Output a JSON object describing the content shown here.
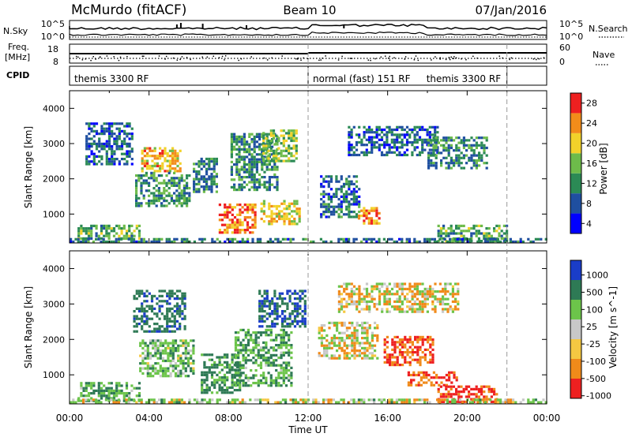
{
  "header": {
    "title": "McMurdo (fitACF)",
    "beam": "Beam 10",
    "date": "07/Jan/2016"
  },
  "strips": {
    "nsky_label": "N.Sky",
    "nsearch_label": "N.Search",
    "freq_label_1": "Freq.",
    "freq_label_2": "[MHz]",
    "nave_label": "Nave",
    "cpid_label": "CPID",
    "left_ticks_top": [
      "10^5",
      "10^0"
    ],
    "right_ticks_top": [
      "10^5",
      "10^0"
    ],
    "left_ticks_freq": [
      "18",
      "8"
    ],
    "right_ticks_nave": [
      "60",
      "0"
    ],
    "cpid_segments": [
      {
        "label": "themis 3300 RF",
        "start_hour": 0,
        "end_hour": 12
      },
      {
        "label": "normal (fast) 151 RF",
        "start_hour": 12,
        "end_hour": 22
      },
      {
        "label": "themis 3300 RF",
        "start_hour": 22,
        "end_hour": 24
      }
    ]
  },
  "axes": {
    "ylabel": "Slant Range [km]",
    "xlabel": "Time UT",
    "y_ticks": [
      "1000",
      "2000",
      "3000",
      "4000"
    ],
    "x_ticks": [
      "00:00",
      "04:00",
      "08:00",
      "12:00",
      "16:00",
      "20:00",
      "00:00"
    ]
  },
  "chart_data": [
    {
      "type": "heatmap",
      "name": "power",
      "colorbar_label": "Power [dB]",
      "colorbar_ticks": [
        "4",
        "8",
        "12",
        "16",
        "20",
        "24",
        "28"
      ],
      "colors": [
        "#0000ff",
        "#1f4fa0",
        "#2b8a55",
        "#6dbb4a",
        "#f2d22a",
        "#f28c1a",
        "#ee2020"
      ],
      "x_unit": "hours UT",
      "xlim": [
        0,
        24
      ],
      "ylim": [
        180,
        4500
      ],
      "regions": [
        {
          "t0": 0.4,
          "t1": 3.5,
          "r0": 300,
          "r1": 700,
          "value": 14
        },
        {
          "t0": 0.8,
          "t1": 3.2,
          "r0": 2400,
          "r1": 3600,
          "value": 9
        },
        {
          "t0": 3.6,
          "t1": 5.6,
          "r0": 2200,
          "r1": 2900,
          "value": 22
        },
        {
          "t0": 3.3,
          "t1": 6.0,
          "r0": 1200,
          "r1": 2200,
          "value": 12
        },
        {
          "t0": 6.2,
          "t1": 7.4,
          "r0": 1600,
          "r1": 2600,
          "value": 11
        },
        {
          "t0": 7.5,
          "t1": 9.3,
          "r0": 500,
          "r1": 1300,
          "value": 25
        },
        {
          "t0": 8.1,
          "t1": 10.5,
          "r0": 1700,
          "r1": 3300,
          "value": 12
        },
        {
          "t0": 9.6,
          "t1": 11.6,
          "r0": 700,
          "r1": 1400,
          "value": 20
        },
        {
          "t0": 9.7,
          "t1": 11.4,
          "r0": 2500,
          "r1": 3400,
          "value": 16
        },
        {
          "t0": 12.6,
          "t1": 14.6,
          "r0": 900,
          "r1": 2100,
          "value": 10
        },
        {
          "t0": 14.5,
          "t1": 15.6,
          "r0": 700,
          "r1": 1200,
          "value": 24
        },
        {
          "t0": 14.0,
          "t1": 18.5,
          "r0": 2700,
          "r1": 3500,
          "value": 9
        },
        {
          "t0": 18.5,
          "t1": 22.0,
          "r0": 250,
          "r1": 700,
          "value": 14
        },
        {
          "t0": 18.0,
          "t1": 21.0,
          "r0": 2300,
          "r1": 3200,
          "value": 12
        },
        {
          "t0": 0.0,
          "t1": 24.0,
          "r0": 200,
          "r1": 320,
          "value": 10
        }
      ]
    },
    {
      "type": "heatmap",
      "name": "velocity",
      "colorbar_label": "Velocity [m s^-1]",
      "colorbar_ticks": [
        "1000",
        "500",
        "100",
        "25",
        "-25",
        "-100",
        "-500",
        "-1000"
      ],
      "colors": [
        "#1a3dc8",
        "#2e7a55",
        "#6cc44a",
        "#c8c8c8",
        "#f5c842",
        "#f08a1a",
        "#ee2020"
      ],
      "x_unit": "hours UT",
      "xlim": [
        0,
        24
      ],
      "ylim": [
        180,
        4500
      ],
      "regions": [
        {
          "t0": 0.4,
          "t1": 3.5,
          "r0": 300,
          "r1": 800,
          "value": 300
        },
        {
          "t0": 3.2,
          "t1": 5.8,
          "r0": 2200,
          "r1": 3400,
          "value": 600
        },
        {
          "t0": 3.5,
          "t1": 6.2,
          "r0": 1000,
          "r1": 2000,
          "value": 200
        },
        {
          "t0": 6.6,
          "t1": 8.6,
          "r0": 500,
          "r1": 1600,
          "value": 400
        },
        {
          "t0": 8.3,
          "t1": 11.2,
          "r0": 700,
          "r1": 2300,
          "value": 300
        },
        {
          "t0": 9.5,
          "t1": 11.8,
          "r0": 2400,
          "r1": 3400,
          "value": 700
        },
        {
          "t0": 12.5,
          "t1": 15.5,
          "r0": 1500,
          "r1": 2500,
          "value": 0
        },
        {
          "t0": 13.5,
          "t1": 19.5,
          "r0": 2800,
          "r1": 3600,
          "value": 0
        },
        {
          "t0": 15.8,
          "t1": 18.3,
          "r0": 1300,
          "r1": 2100,
          "value": -300
        },
        {
          "t0": 17.0,
          "t1": 19.5,
          "r0": 700,
          "r1": 1100,
          "value": -300
        },
        {
          "t0": 18.5,
          "t1": 21.5,
          "r0": 250,
          "r1": 700,
          "value": -400
        },
        {
          "t0": 0.0,
          "t1": 24.0,
          "r0": 200,
          "r1": 330,
          "value": 80
        }
      ]
    }
  ]
}
